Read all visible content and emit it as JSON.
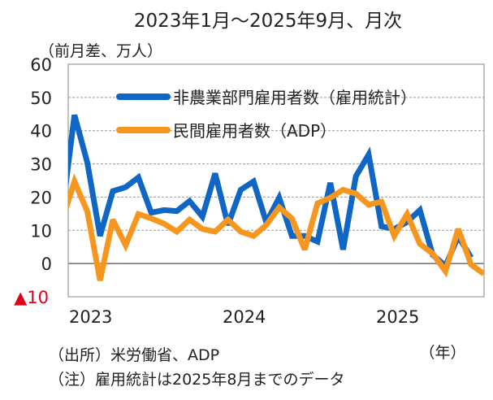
{
  "chart_data": {
    "type": "line",
    "title": "2023年1月～2025年9月、月次",
    "ylabel": "（前月差、万人）",
    "xlabel": "（年）",
    "ylim": [
      -10,
      60
    ],
    "yticks": [
      60,
      50,
      40,
      30,
      20,
      10,
      0
    ],
    "ytick_negative_label": "▲10",
    "xtick_labels": [
      "2023",
      "2024",
      "2025"
    ],
    "x_start": "2023-01",
    "months_count": 33,
    "grid": true,
    "legend_position": "top-left",
    "series": [
      {
        "name": "非農業部門雇用者数（雇用統計）",
        "color": "#0F66C4",
        "values": [
          44.7,
          30.4,
          8.3,
          21.8,
          23.0,
          25.9,
          15.3,
          16.1,
          15.8,
          18.8,
          14.1,
          27.1,
          11.6,
          22.2,
          24.7,
          12.4,
          19.8,
          8.3,
          8.3,
          6.6,
          24.3,
          4.2,
          26.3,
          32.8,
          11.2,
          10.4,
          12.5,
          16.1,
          2.6,
          -0.7,
          8.2,
          1.8
        ]
      },
      {
        "name": "民間雇用者数（ADP）",
        "color": "#F7961E",
        "values": [
          24.7,
          15.7,
          -5.1,
          13.2,
          5.5,
          14.9,
          13.6,
          12.0,
          9.6,
          13.2,
          10.4,
          9.6,
          13.2,
          9.6,
          8.3,
          11.6,
          16.9,
          13.6,
          4.2,
          18.1,
          19.8,
          22.2,
          21.0,
          17.7,
          18.6,
          8.3,
          14.9,
          5.9,
          3.0,
          -2.3,
          10.4,
          -0.3,
          -3.1
        ]
      }
    ],
    "notes": [
      "（出所）米労働省、ADP",
      "（注）雇用統計は2025年8月までのデータ"
    ]
  }
}
